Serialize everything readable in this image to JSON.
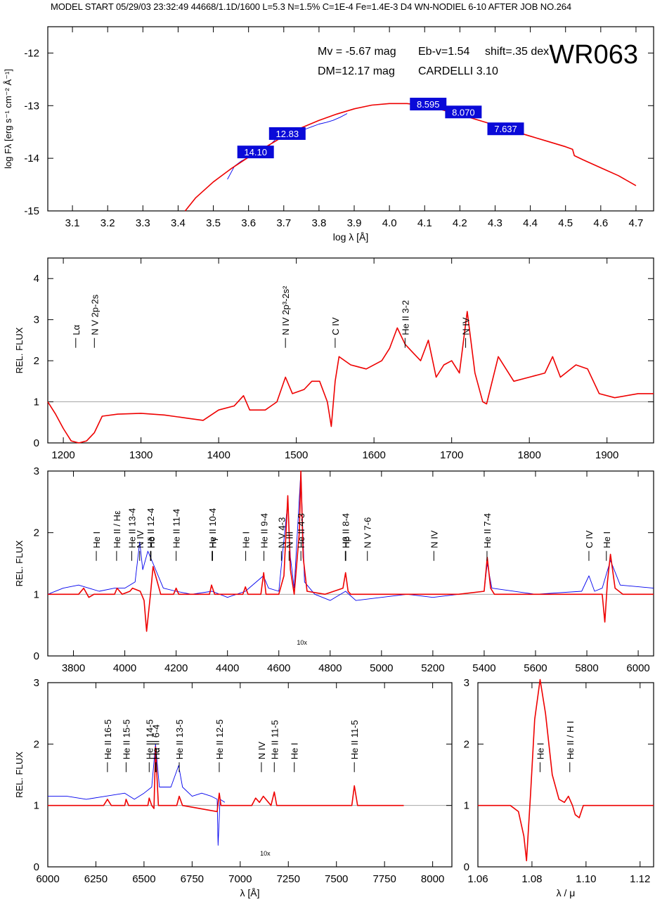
{
  "header": "MODEL START   05/29/03   23:32:49    44668/1.1D/1600  L=5.3  N=1.5%  C=1E-4  Fe=1.4E-3  D4  WN-NODIEL 6-10     AFTER JOB NO.264",
  "colors": {
    "model": "#ee0000",
    "observed": "#0000ee",
    "label_box": "#0a0ad8",
    "axis": "#000000"
  },
  "chart_data": [
    {
      "id": "sed",
      "type": "line",
      "title": "WR063",
      "xlabel": "log λ [Å]",
      "ylabel": "log Fλ [erg s⁻¹ cm⁻² Å⁻¹]",
      "xlim": [
        3.03,
        4.75
      ],
      "ylim": [
        -15,
        -11.5
      ],
      "xticks": [
        3.1,
        3.2,
        3.3,
        3.4,
        3.5,
        3.6,
        3.7,
        3.8,
        3.9,
        4.0,
        4.1,
        4.2,
        4.3,
        4.4,
        4.5,
        4.6,
        4.7
      ],
      "yticks": [
        -15,
        -14,
        -13,
        -12
      ],
      "annotations": {
        "mv": "Mv = -5.67 mag",
        "ebv": "Eb-v=1.54",
        "shift": "shift=.35 dex",
        "dm": "DM=12.17 mag",
        "law": "CARDELLI 3.10"
      },
      "photometry_labels": [
        {
          "text": "14.10",
          "x": 3.62,
          "y": -13.88
        },
        {
          "text": "12.83",
          "x": 3.71,
          "y": -13.53
        },
        {
          "text": "8.595",
          "x": 4.11,
          "y": -12.97
        },
        {
          "text": "8.070",
          "x": 4.21,
          "y": -13.12
        },
        {
          "text": "7.637",
          "x": 4.33,
          "y": -13.44
        }
      ],
      "model": {
        "x": [
          3.42,
          3.45,
          3.5,
          3.55,
          3.6,
          3.65,
          3.7,
          3.75,
          3.8,
          3.85,
          3.9,
          3.95,
          4.0,
          4.05,
          4.1,
          4.15,
          4.2,
          4.25,
          4.3,
          4.35,
          4.4,
          4.45,
          4.5,
          4.52,
          4.525,
          4.55,
          4.6,
          4.65,
          4.7
        ],
        "y": [
          -15.0,
          -14.75,
          -14.45,
          -14.2,
          -13.98,
          -13.78,
          -13.58,
          -13.42,
          -13.28,
          -13.16,
          -13.06,
          -12.99,
          -12.96,
          -12.96,
          -13.0,
          -13.08,
          -13.17,
          -13.27,
          -13.37,
          -13.48,
          -13.58,
          -13.68,
          -13.78,
          -13.83,
          -13.95,
          -14.03,
          -14.18,
          -14.33,
          -14.52
        ]
      },
      "observed": {
        "x": [
          3.54,
          3.56,
          3.58,
          3.6,
          3.62,
          3.64,
          3.66,
          3.68,
          3.7,
          3.72,
          3.74,
          3.76,
          3.78,
          3.8,
          3.82,
          3.84,
          3.86,
          3.88
        ],
        "y": [
          -14.4,
          -14.15,
          -14.05,
          -13.98,
          -13.92,
          -13.88,
          -13.75,
          -13.62,
          -13.58,
          -13.5,
          -13.48,
          -13.45,
          -13.4,
          -13.35,
          -13.32,
          -13.28,
          -13.22,
          -13.15
        ]
      }
    },
    {
      "id": "uv",
      "type": "line",
      "xlim": [
        1180,
        1960
      ],
      "ylim": [
        0,
        4.5
      ],
      "ylabel": "REL. FLUX",
      "xticks": [
        1200,
        1300,
        1400,
        1500,
        1600,
        1700,
        1800,
        1900
      ],
      "yticks": [
        0,
        1,
        2,
        3,
        4
      ],
      "lines": [
        {
          "label": "Lα",
          "x": 1216
        },
        {
          "label": "N V 2p-2s",
          "x": 1240
        },
        {
          "label": "N IV 2p³-2s²",
          "x": 1486
        },
        {
          "label": "C IV",
          "x": 1550
        },
        {
          "label": "He II 3-2",
          "x": 1640
        },
        {
          "label": "N IV",
          "x": 1718
        }
      ],
      "model": {
        "x": [
          1180,
          1190,
          1200,
          1210,
          1220,
          1230,
          1240,
          1250,
          1270,
          1300,
          1330,
          1360,
          1380,
          1400,
          1420,
          1432,
          1440,
          1460,
          1475,
          1486,
          1495,
          1510,
          1520,
          1530,
          1540,
          1545,
          1550,
          1555,
          1570,
          1590,
          1610,
          1620,
          1630,
          1640,
          1650,
          1660,
          1670,
          1680,
          1690,
          1700,
          1710,
          1720,
          1730,
          1740,
          1745,
          1760,
          1780,
          1800,
          1820,
          1830,
          1840,
          1860,
          1875,
          1890,
          1910,
          1940,
          1960
        ],
        "y": [
          1.0,
          0.7,
          0.35,
          0.05,
          0.0,
          0.05,
          0.25,
          0.65,
          0.7,
          0.72,
          0.68,
          0.6,
          0.55,
          0.8,
          0.9,
          1.15,
          0.8,
          0.8,
          1.0,
          1.6,
          1.2,
          1.3,
          1.5,
          1.5,
          1.0,
          0.4,
          1.5,
          2.1,
          1.9,
          1.8,
          2.0,
          2.3,
          2.8,
          2.4,
          2.2,
          2.0,
          2.5,
          1.6,
          1.9,
          2.0,
          1.7,
          3.2,
          1.7,
          1.0,
          0.95,
          2.1,
          1.5,
          1.6,
          1.7,
          2.1,
          1.6,
          1.9,
          1.8,
          1.2,
          1.1,
          1.2,
          1.2
        ]
      }
    },
    {
      "id": "opt",
      "type": "line",
      "xlim": [
        3700,
        6060
      ],
      "ylim": [
        0,
        3
      ],
      "ylabel": "REL. FLUX",
      "xticks": [
        3800,
        4000,
        4200,
        4400,
        4600,
        4800,
        5000,
        5200,
        5400,
        5600,
        5800,
        6000
      ],
      "yticks": [
        0,
        1,
        2,
        3
      ],
      "inset_label": "10x",
      "lines": [
        {
          "label": "He I",
          "x": 3889
        },
        {
          "label": "He II / Hε",
          "x": 3968
        },
        {
          "label": "He II 13-4",
          "x": 4027
        },
        {
          "label": "N IV",
          "x": 4058
        },
        {
          "label": "He II 12-4",
          "x": 4100
        },
        {
          "label": "Hδ",
          "x": 4102
        },
        {
          "label": "He II 11-4",
          "x": 4200
        },
        {
          "label": "He II 10-4",
          "x": 4340
        },
        {
          "label": "Hγ",
          "x": 4342
        },
        {
          "label": "He I",
          "x": 4471
        },
        {
          "label": "He II 9-4",
          "x": 4542
        },
        {
          "label": "N V 4-3",
          "x": 4610
        },
        {
          "label": "N III",
          "x": 4640
        },
        {
          "label": "He II 4-3",
          "x": 4686
        },
        {
          "label": "He II 8-4",
          "x": 4859
        },
        {
          "label": "Hβ",
          "x": 4861
        },
        {
          "label": "N V 7-6",
          "x": 4945
        },
        {
          "label": "N IV",
          "x": 5204
        },
        {
          "label": "He II 7-4",
          "x": 5411
        },
        {
          "label": "C IV",
          "x": 5808
        },
        {
          "label": "He I",
          "x": 5876
        }
      ],
      "model": {
        "x": [
          3700,
          3820,
          3840,
          3860,
          3880,
          3900,
          3960,
          3970,
          3990,
          4020,
          4030,
          4060,
          4075,
          4085,
          4100,
          4110,
          4140,
          4190,
          4200,
          4210,
          4330,
          4338,
          4350,
          4460,
          4470,
          4480,
          4530,
          4541,
          4550,
          4600,
          4620,
          4635,
          4645,
          4660,
          4680,
          4686,
          4695,
          4710,
          4780,
          4850,
          4860,
          4870,
          4880,
          5300,
          5400,
          5412,
          5425,
          5440,
          5860,
          5870,
          5880,
          5892,
          5910,
          5940,
          6060
        ],
        "y": [
          1.0,
          1.0,
          1.1,
          0.95,
          1.0,
          1.0,
          1.0,
          1.1,
          1.0,
          1.05,
          1.1,
          1.05,
          0.9,
          0.4,
          1.0,
          1.45,
          1.0,
          1.0,
          1.1,
          1.0,
          1.0,
          1.15,
          1.0,
          1.0,
          1.12,
          1.0,
          1.0,
          1.35,
          1.0,
          1.0,
          1.3,
          2.6,
          1.4,
          1.0,
          2.0,
          3.0,
          1.6,
          1.05,
          1.0,
          1.1,
          1.35,
          1.05,
          1.0,
          1.0,
          1.05,
          1.6,
          1.1,
          1.0,
          1.0,
          0.55,
          1.2,
          1.65,
          1.1,
          1.0,
          1.0
        ]
      },
      "observed": {
        "x": [
          3700,
          3760,
          3820,
          3860,
          3900,
          3960,
          4000,
          4040,
          4058,
          4070,
          4090,
          4110,
          4150,
          4200,
          4260,
          4340,
          4400,
          4470,
          4540,
          4560,
          4600,
          4635,
          4645,
          4660,
          4686,
          4700,
          4740,
          4800,
          4860,
          4900,
          5000,
          5100,
          5200,
          5300,
          5400,
          5412,
          5430,
          5600,
          5780,
          5808,
          5830,
          5860,
          5892,
          5930,
          6060
        ],
        "y": [
          1.0,
          1.1,
          1.15,
          1.1,
          1.05,
          1.1,
          1.1,
          1.2,
          1.85,
          1.4,
          1.7,
          1.5,
          1.1,
          1.05,
          1.0,
          1.05,
          0.95,
          1.05,
          1.3,
          1.1,
          1.05,
          2.5,
          1.6,
          1.1,
          3.0,
          1.2,
          1.0,
          0.9,
          1.05,
          0.9,
          0.95,
          1.0,
          0.95,
          1.0,
          1.05,
          1.5,
          1.1,
          1.0,
          1.05,
          1.3,
          1.05,
          1.1,
          1.55,
          1.15,
          1.1
        ]
      }
    },
    {
      "id": "red",
      "type": "line",
      "xlim": [
        6000,
        8100
      ],
      "ylim": [
        0,
        3
      ],
      "xlabel": "λ [Å]",
      "ylabel": "REL. FLUX",
      "xticks": [
        6000,
        6250,
        6500,
        6750,
        7000,
        7250,
        7500,
        7750,
        8000
      ],
      "yticks": [
        0,
        1,
        2,
        3
      ],
      "inset_label": "10x",
      "lines": [
        {
          "label": "He II 16-5",
          "x": 6310
        },
        {
          "label": "He II 15-5",
          "x": 6407
        },
        {
          "label": "He II 14-5",
          "x": 6527
        },
        {
          "label": "He II 6-4",
          "x": 6560
        },
        {
          "label": "Hα",
          "x": 6563
        },
        {
          "label": "He II 13-5",
          "x": 6683
        },
        {
          "label": "He II 12-5",
          "x": 6891
        },
        {
          "label": "N IV",
          "x": 7110
        },
        {
          "label": "He II 11-5",
          "x": 7177
        },
        {
          "label": "He I",
          "x": 7281
        },
        {
          "label": "He II 11-5",
          "x": 7593
        }
      ],
      "model": {
        "x": [
          6000,
          6290,
          6310,
          6330,
          6400,
          6407,
          6420,
          6520,
          6527,
          6540,
          6552,
          6560,
          6575,
          6600,
          6670,
          6683,
          6700,
          6880,
          6891,
          6900,
          7060,
          7080,
          7100,
          7120,
          7160,
          7177,
          7190,
          7580,
          7593,
          7610,
          7850
        ],
        "y": [
          1.0,
          1.0,
          1.1,
          1.0,
          1.0,
          1.1,
          1.0,
          1.0,
          1.12,
          1.0,
          0.95,
          1.95,
          1.0,
          1.0,
          1.0,
          1.15,
          1.0,
          0.9,
          1.2,
          1.0,
          1.0,
          1.12,
          1.05,
          1.15,
          1.0,
          1.22,
          1.0,
          1.0,
          1.32,
          1.0,
          1.0
        ]
      },
      "observed": {
        "x": [
          6000,
          6100,
          6200,
          6300,
          6400,
          6450,
          6500,
          6540,
          6560,
          6580,
          6640,
          6680,
          6700,
          6750,
          6800,
          6850,
          6880,
          6885,
          6895,
          6920
        ],
        "y": [
          1.15,
          1.15,
          1.1,
          1.15,
          1.2,
          1.1,
          1.2,
          1.3,
          2.0,
          1.3,
          1.3,
          1.65,
          1.3,
          1.15,
          1.2,
          1.15,
          1.1,
          0.35,
          1.1,
          1.05
        ]
      }
    },
    {
      "id": "ir",
      "type": "line",
      "xlim": [
        1.06,
        1.125
      ],
      "ylim": [
        0,
        3
      ],
      "xlabel": "λ / μ",
      "xticks": [
        1.06,
        1.08,
        1.1,
        1.12
      ],
      "yticks": [
        0,
        1,
        2,
        3
      ],
      "lines": [
        {
          "label": "He I",
          "x": 1.083
        },
        {
          "label": "He II / H I",
          "x": 1.094
        }
      ],
      "model": {
        "x": [
          1.06,
          1.072,
          1.075,
          1.077,
          1.078,
          1.0795,
          1.081,
          1.083,
          1.085,
          1.0875,
          1.09,
          1.092,
          1.0935,
          1.095,
          1.096,
          1.0975,
          1.099,
          1.125
        ],
        "y": [
          1.0,
          1.0,
          0.9,
          0.5,
          0.1,
          1.2,
          2.4,
          3.05,
          2.5,
          1.5,
          1.1,
          1.05,
          1.15,
          1.0,
          0.85,
          0.8,
          1.0,
          1.0
        ]
      }
    }
  ]
}
